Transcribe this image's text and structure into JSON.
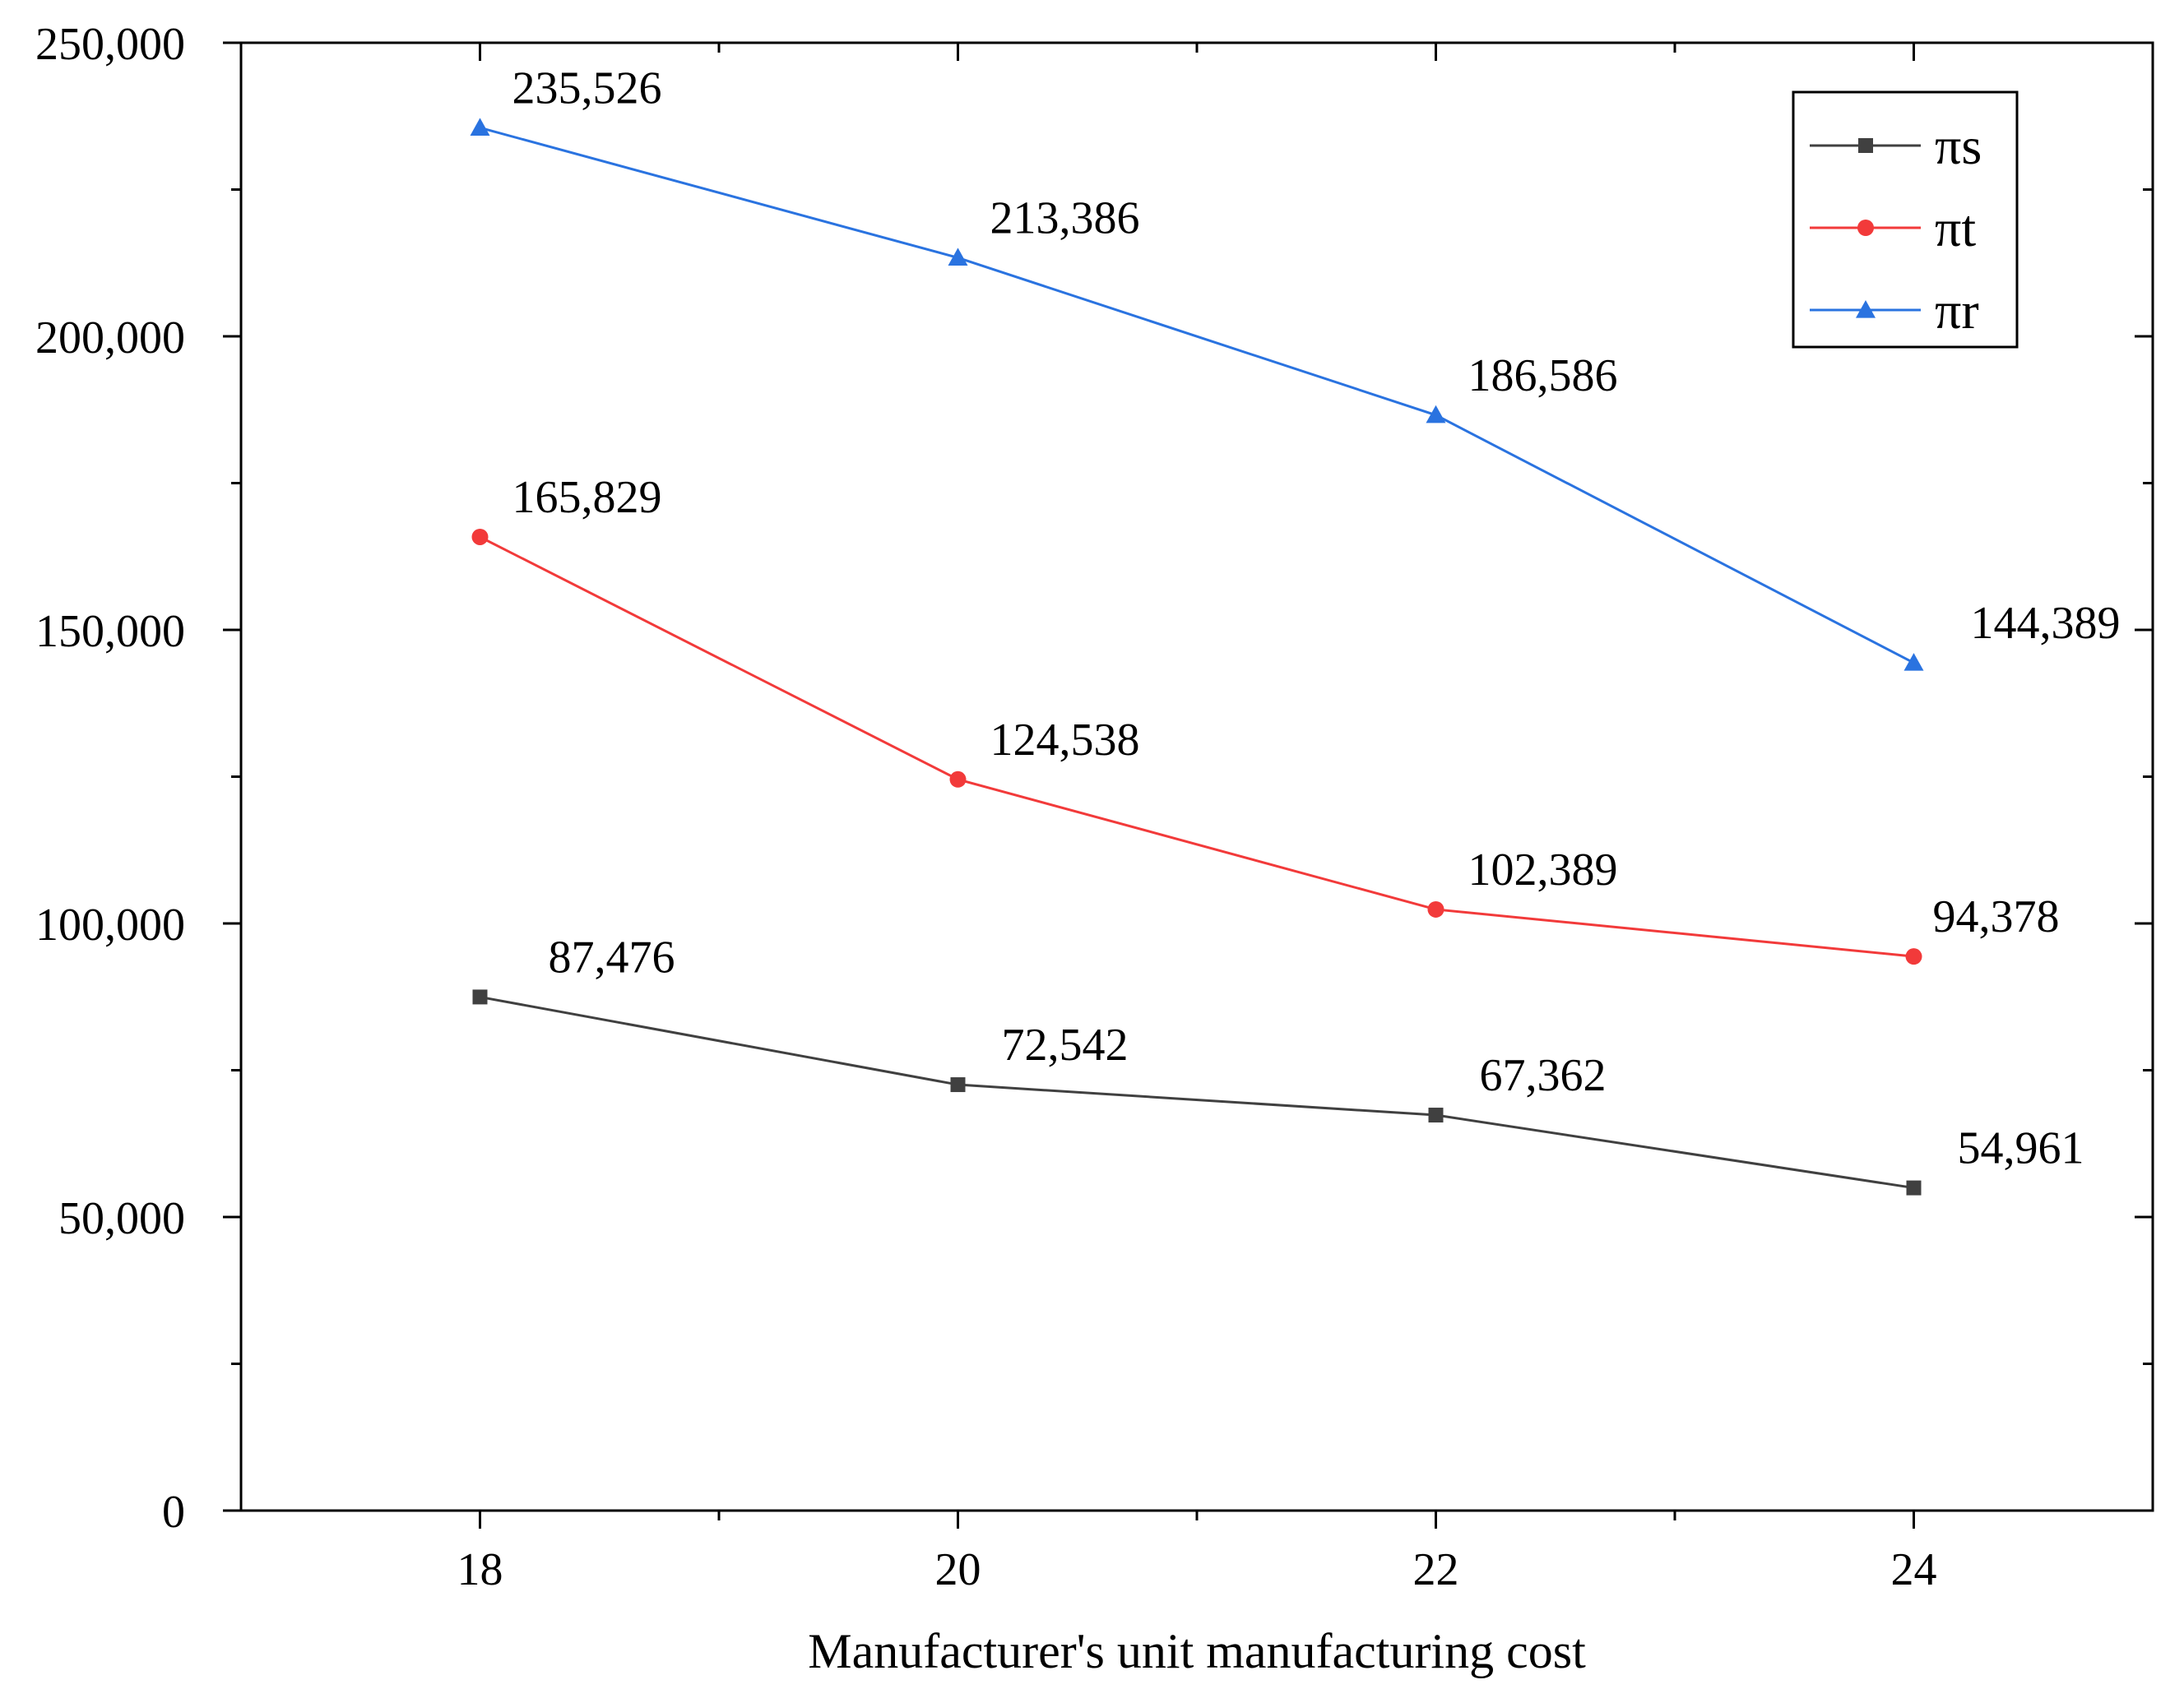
{
  "chart_data": {
    "type": "line",
    "title": "",
    "xlabel": "Manufacturer's unit manufacturing cost",
    "ylabel": "",
    "x": [
      18,
      20,
      22,
      24
    ],
    "x_tick_labels": [
      "18",
      "20",
      "22",
      "24"
    ],
    "xlim": [
      17,
      25
    ],
    "ylim": [
      0,
      250000
    ],
    "y_ticks": [
      0,
      50000,
      100000,
      150000,
      200000,
      250000
    ],
    "y_tick_labels": [
      "0",
      "50,000",
      "100,000",
      "150,000",
      "200,000",
      "250,000"
    ],
    "grid": false,
    "legend_position": "top-right",
    "series": [
      {
        "name": "πs",
        "color": "#404040",
        "marker": "square",
        "values": [
          87476,
          72542,
          67362,
          54961
        ],
        "labels": [
          "87,476",
          "72,542",
          "67,362",
          "54,961"
        ]
      },
      {
        "name": "πt",
        "color": "#f23a3a",
        "marker": "circle",
        "values": [
          165829,
          124538,
          102389,
          94378
        ],
        "labels": [
          "165,829",
          "124,538",
          "102,389",
          "94,378"
        ]
      },
      {
        "name": "πr",
        "color": "#2a73e0",
        "marker": "triangle",
        "values": [
          235526,
          213386,
          186586,
          144389
        ],
        "labels": [
          "235,526",
          "213,386",
          "186,586",
          "144,389"
        ]
      }
    ]
  }
}
